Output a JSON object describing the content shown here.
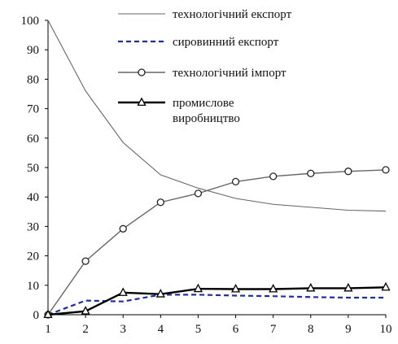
{
  "chart_data": {
    "type": "line",
    "x": [
      1,
      2,
      3,
      4,
      5,
      6,
      7,
      8,
      9,
      10
    ],
    "xlim": [
      1,
      10
    ],
    "ylim": [
      0,
      100
    ],
    "yticks": [
      0,
      10,
      20,
      30,
      40,
      50,
      60,
      70,
      80,
      90,
      100
    ],
    "grid": false,
    "legend_position": "top-right",
    "series": [
      {
        "name": "технологічний експорт",
        "values": [
          100,
          76,
          58.5,
          47.5,
          43,
          39.5,
          37.5,
          36.5,
          35.5,
          35.2
        ],
        "color": "#666666",
        "style": "solid-thin",
        "marker": "none"
      },
      {
        "name": "сировинний експорт",
        "values": [
          0,
          4.8,
          4.5,
          6.8,
          6.8,
          6.5,
          6.3,
          6,
          5.8,
          5.8
        ],
        "color": "#1f2f9e",
        "style": "dashed",
        "marker": "none"
      },
      {
        "name": "технологічний імпорт",
        "values": [
          0,
          18.2,
          29.2,
          38.2,
          41.2,
          45.2,
          47,
          48,
          48.7,
          49.2
        ],
        "color": "#666666",
        "style": "solid",
        "marker": "circle"
      },
      {
        "name_lines": [
          "промислове",
          "виробництво"
        ],
        "values": [
          0,
          1.2,
          7.5,
          7,
          8.8,
          8.7,
          8.7,
          9,
          9,
          9.3
        ],
        "color": "#000000",
        "style": "solid-bold",
        "marker": "triangle"
      }
    ]
  }
}
